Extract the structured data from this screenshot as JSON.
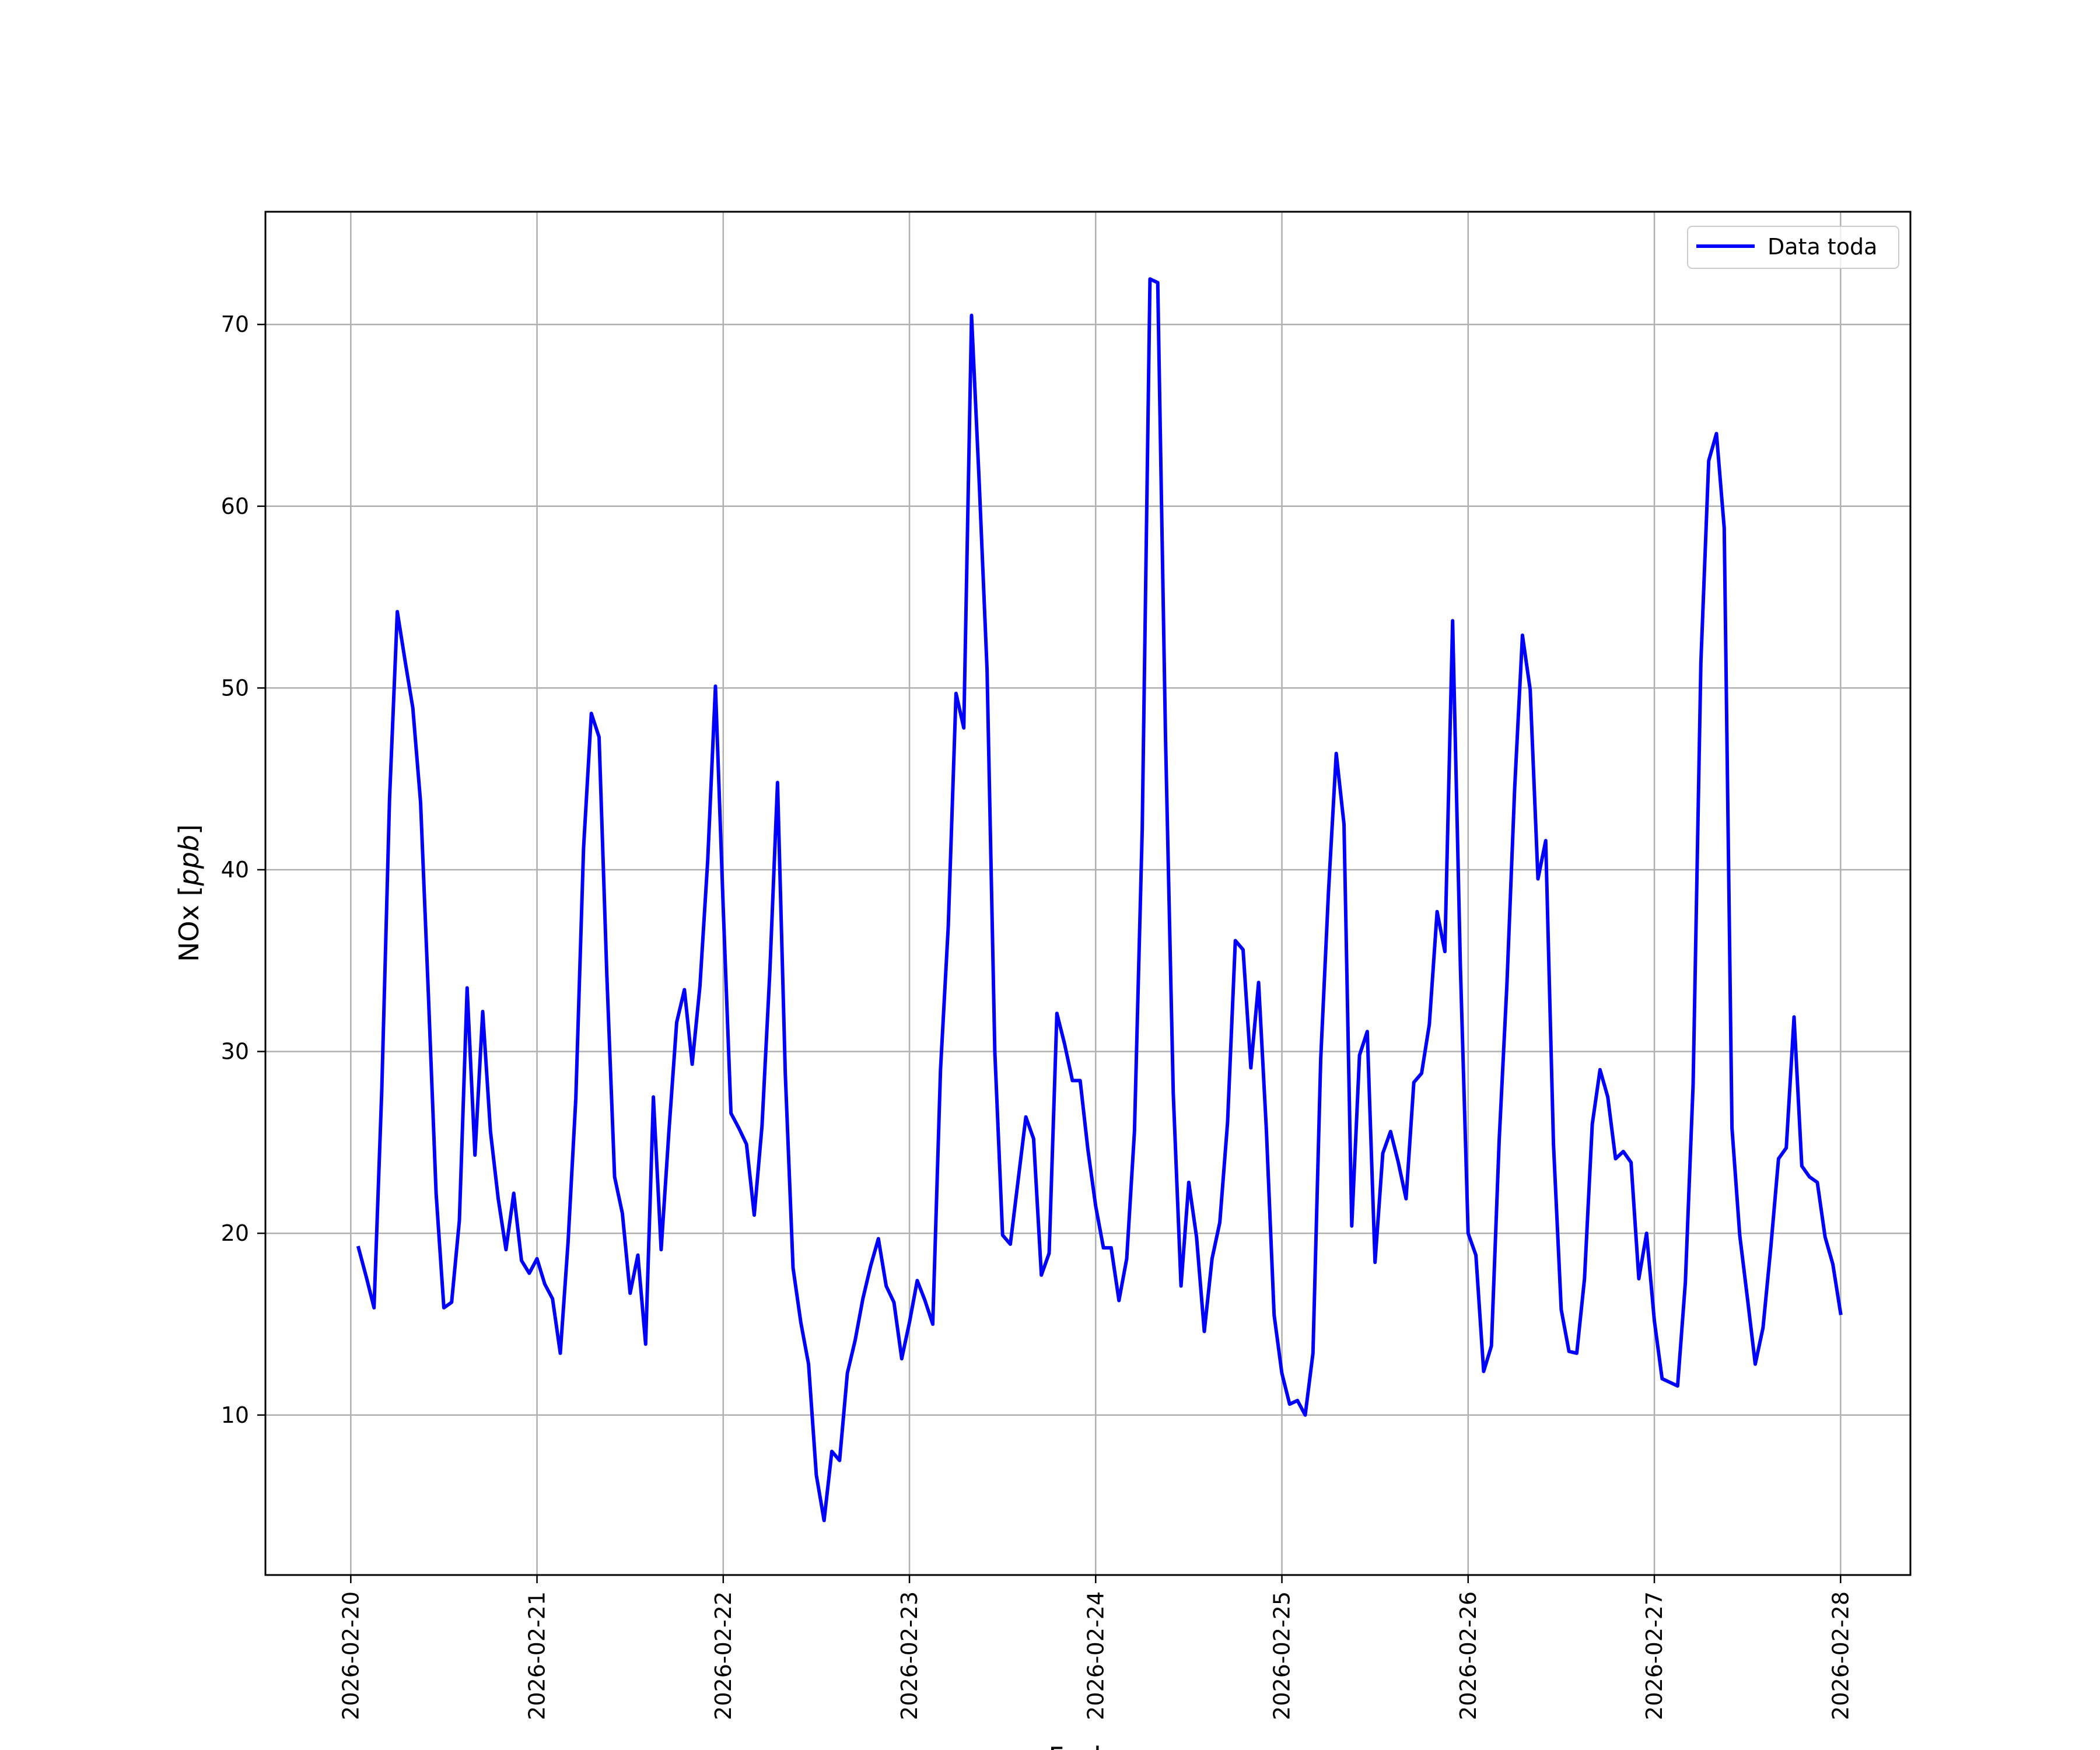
{
  "chart_data": {
    "type": "line",
    "xlabel": "Fecha",
    "ylabel_main": "NOx [",
    "ylabel_unit": "ppb",
    "ylabel_end": "]",
    "x_ticks": [
      "2026-02-20",
      "2026-02-21",
      "2026-02-22",
      "2026-02-23",
      "2026-02-24",
      "2026-02-25",
      "2026-02-26",
      "2026-02-27",
      "2026-02-28"
    ],
    "y_ticks": [
      10,
      20,
      30,
      40,
      50,
      60,
      70
    ],
    "xlim": [
      "2026-02-19 13:00",
      "2026-02-28 09:00"
    ],
    "ylim": [
      1.2,
      76.2
    ],
    "grid": true,
    "legend_position": "top-right",
    "series": [
      {
        "name": "Data toda",
        "color": "#0000ff",
        "x": [
          "2026-02-20 01:00",
          "2026-02-20 02:00",
          "2026-02-20 03:00",
          "2026-02-20 04:00",
          "2026-02-20 05:00",
          "2026-02-20 06:00",
          "2026-02-20 07:00",
          "2026-02-20 08:00",
          "2026-02-20 09:00",
          "2026-02-20 10:00",
          "2026-02-20 11:00",
          "2026-02-20 12:00",
          "2026-02-20 13:00",
          "2026-02-20 14:00",
          "2026-02-20 15:00",
          "2026-02-20 16:00",
          "2026-02-20 17:00",
          "2026-02-20 18:00",
          "2026-02-20 19:00",
          "2026-02-20 20:00",
          "2026-02-20 21:00",
          "2026-02-20 22:00",
          "2026-02-20 23:00",
          "2026-02-21 00:00",
          "2026-02-21 01:00",
          "2026-02-21 02:00",
          "2026-02-21 03:00",
          "2026-02-21 04:00",
          "2026-02-21 05:00",
          "2026-02-21 06:00",
          "2026-02-21 07:00",
          "2026-02-21 08:00",
          "2026-02-21 09:00",
          "2026-02-21 10:00",
          "2026-02-21 11:00",
          "2026-02-21 12:00",
          "2026-02-21 13:00",
          "2026-02-21 14:00",
          "2026-02-21 15:00",
          "2026-02-21 16:00",
          "2026-02-21 17:00",
          "2026-02-21 18:00",
          "2026-02-21 19:00",
          "2026-02-21 20:00",
          "2026-02-21 21:00",
          "2026-02-21 22:00",
          "2026-02-21 23:00",
          "2026-02-22 00:00",
          "2026-02-22 01:00",
          "2026-02-22 02:00",
          "2026-02-22 03:00",
          "2026-02-22 04:00",
          "2026-02-22 05:00",
          "2026-02-22 06:00",
          "2026-02-22 07:00",
          "2026-02-22 08:00",
          "2026-02-22 09:00",
          "2026-02-22 10:00",
          "2026-02-22 11:00",
          "2026-02-22 12:00",
          "2026-02-22 13:00",
          "2026-02-22 14:00",
          "2026-02-22 15:00",
          "2026-02-22 16:00",
          "2026-02-22 17:00",
          "2026-02-22 18:00",
          "2026-02-22 19:00",
          "2026-02-22 20:00",
          "2026-02-22 21:00",
          "2026-02-22 22:00",
          "2026-02-22 23:00",
          "2026-02-23 00:00",
          "2026-02-23 01:00",
          "2026-02-23 02:00",
          "2026-02-23 03:00",
          "2026-02-23 04:00",
          "2026-02-23 05:00",
          "2026-02-23 06:00",
          "2026-02-23 07:00",
          "2026-02-23 08:00",
          "2026-02-23 09:00",
          "2026-02-23 10:00",
          "2026-02-23 11:00",
          "2026-02-23 12:00",
          "2026-02-23 13:00",
          "2026-02-23 14:00",
          "2026-02-23 15:00",
          "2026-02-23 16:00",
          "2026-02-23 17:00",
          "2026-02-23 18:00",
          "2026-02-23 19:00",
          "2026-02-23 20:00",
          "2026-02-23 21:00",
          "2026-02-23 22:00",
          "2026-02-23 23:00",
          "2026-02-24 00:00",
          "2026-02-24 01:00",
          "2026-02-24 02:00",
          "2026-02-24 03:00",
          "2026-02-24 04:00",
          "2026-02-24 05:00",
          "2026-02-24 06:00",
          "2026-02-24 07:00",
          "2026-02-24 08:00",
          "2026-02-24 09:00",
          "2026-02-24 10:00",
          "2026-02-24 11:00",
          "2026-02-24 12:00",
          "2026-02-24 13:00",
          "2026-02-24 14:00",
          "2026-02-24 15:00",
          "2026-02-24 16:00",
          "2026-02-24 17:00",
          "2026-02-24 18:00",
          "2026-02-24 19:00",
          "2026-02-24 20:00",
          "2026-02-24 21:00",
          "2026-02-24 22:00",
          "2026-02-24 23:00",
          "2026-02-25 00:00",
          "2026-02-25 01:00",
          "2026-02-25 02:00",
          "2026-02-25 03:00",
          "2026-02-25 04:00",
          "2026-02-25 05:00",
          "2026-02-25 06:00",
          "2026-02-25 07:00",
          "2026-02-25 08:00",
          "2026-02-25 09:00",
          "2026-02-25 10:00",
          "2026-02-25 11:00",
          "2026-02-25 12:00",
          "2026-02-25 13:00",
          "2026-02-25 14:00",
          "2026-02-25 15:00",
          "2026-02-25 16:00",
          "2026-02-25 17:00",
          "2026-02-25 18:00",
          "2026-02-25 19:00",
          "2026-02-25 20:00",
          "2026-02-25 21:00",
          "2026-02-25 22:00",
          "2026-02-25 23:00",
          "2026-02-26 00:00",
          "2026-02-26 01:00",
          "2026-02-26 02:00",
          "2026-02-26 03:00",
          "2026-02-26 04:00",
          "2026-02-26 05:00",
          "2026-02-26 06:00",
          "2026-02-26 07:00",
          "2026-02-26 08:00",
          "2026-02-26 09:00",
          "2026-02-26 10:00",
          "2026-02-26 11:00",
          "2026-02-26 12:00",
          "2026-02-26 13:00",
          "2026-02-26 14:00",
          "2026-02-26 15:00",
          "2026-02-26 16:00",
          "2026-02-26 17:00",
          "2026-02-26 18:00",
          "2026-02-26 19:00",
          "2026-02-26 20:00",
          "2026-02-26 21:00",
          "2026-02-26 22:00",
          "2026-02-26 23:00",
          "2026-02-27 00:00",
          "2026-02-27 01:00",
          "2026-02-27 02:00",
          "2026-02-27 03:00",
          "2026-02-27 04:00",
          "2026-02-27 05:00",
          "2026-02-27 06:00",
          "2026-02-27 07:00",
          "2026-02-27 08:00",
          "2026-02-27 09:00",
          "2026-02-27 10:00",
          "2026-02-27 11:00",
          "2026-02-27 12:00",
          "2026-02-27 13:00",
          "2026-02-27 14:00",
          "2026-02-27 15:00",
          "2026-02-27 16:00",
          "2026-02-27 17:00",
          "2026-02-27 18:00",
          "2026-02-27 19:00",
          "2026-02-27 20:00",
          "2026-02-27 21:00",
          "2026-02-27 22:00",
          "2026-02-27 23:00",
          "2026-02-28 00:00"
        ],
        "y": [
          19.2,
          17.6,
          15.9,
          27.9,
          43.9,
          54.2,
          51.5,
          48.9,
          43.7,
          33.2,
          22.2,
          15.9,
          16.2,
          20.7,
          33.5,
          24.3,
          32.2,
          25.6,
          21.9,
          19.1,
          22.2,
          18.5,
          17.8,
          18.6,
          17.2,
          16.4,
          13.4,
          19.5,
          27.4,
          41.2,
          48.6,
          47.3,
          34.2,
          23.1,
          21.1,
          16.7,
          18.8,
          13.9,
          27.5,
          19.1,
          25.6,
          31.6,
          33.4,
          29.3,
          33.6,
          40.5,
          50.1,
          37.9,
          26.6,
          25.8,
          24.9,
          21.0,
          25.9,
          34.3,
          44.8,
          28.8,
          18.1,
          15.1,
          12.8,
          6.7,
          4.2,
          8.0,
          7.5,
          12.3,
          14.1,
          16.4,
          18.2,
          19.7,
          17.1,
          16.2,
          13.1,
          15.1,
          17.4,
          16.3,
          15.0,
          29.0,
          36.9,
          49.7,
          47.8,
          70.5,
          61.2,
          51.0,
          30.0,
          19.9,
          19.4,
          22.9,
          26.4,
          25.2,
          17.7,
          18.9,
          32.1,
          30.4,
          28.4,
          28.4,
          24.6,
          21.5,
          19.2,
          19.2,
          16.3,
          18.6,
          25.6,
          42.2,
          72.5,
          72.3,
          47.3,
          27.7,
          17.1,
          22.8,
          19.8,
          14.6,
          18.6,
          20.6,
          26.1,
          36.1,
          35.6,
          29.1,
          33.8,
          25.7,
          15.5,
          12.3,
          10.6,
          10.8,
          10.0,
          13.4,
          29.6,
          38.8,
          46.4,
          42.5,
          20.4,
          29.8,
          31.1,
          18.4,
          24.4,
          25.6,
          23.9,
          21.9,
          28.3,
          28.8,
          31.5,
          37.7,
          35.5,
          53.7,
          34.7,
          20.0,
          18.8,
          12.4,
          13.8,
          25.1,
          33.7,
          44.5,
          52.9,
          49.9,
          39.5,
          41.6,
          24.9,
          15.8,
          13.5,
          13.4,
          17.5,
          26.0,
          29.0,
          27.5,
          24.1,
          24.5,
          23.9,
          17.5,
          20.0,
          15.2,
          12.0,
          11.8,
          11.6,
          17.3,
          28.2,
          51.4,
          62.5,
          64.0,
          58.8,
          25.8,
          19.9,
          16.4,
          12.8,
          14.8,
          19.2,
          24.1,
          24.7,
          31.9,
          23.7,
          23.1,
          22.8,
          19.8,
          18.3,
          15.6
        ]
      }
    ]
  }
}
